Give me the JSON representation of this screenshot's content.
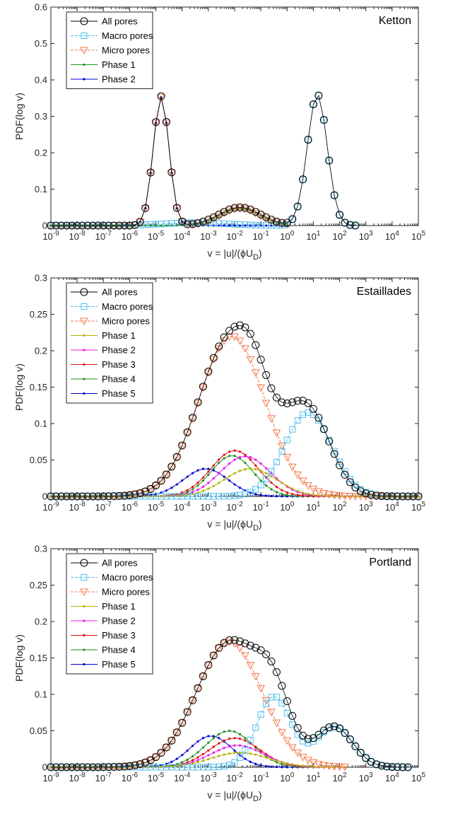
{
  "chart_data": [
    {
      "type": "line",
      "title": "Ketton",
      "xlabel": "v = |u|/(ϕU_D)",
      "ylabel": "PDF(log v)",
      "xscale": "log",
      "xlim": [
        1e-09,
        100000.0
      ],
      "ylim": [
        0,
        0.6
      ],
      "yticks": [
        "0",
        "0.1",
        "0.2",
        "0.3",
        "0.4",
        "0.5",
        "0.6"
      ],
      "xticks": [
        "10^-9",
        "10^-8",
        "10^-7",
        "10^-6",
        "10^-5",
        "10^-4",
        "10^-3",
        "10^-2",
        "10^-1",
        "10^0",
        "10^1",
        "10^2",
        "10^3",
        "10^4",
        "10^5"
      ],
      "legend_position": "top-left",
      "series": [
        {
          "name": "All pores",
          "color": "#000000",
          "marker": "circle",
          "dashed": false,
          "peaks": [
            {
              "c": -4.8,
              "h": 0.355,
              "s": 0.3
            },
            {
              "c": -1.8,
              "h": 0.05,
              "s": 0.8
            },
            {
              "c": 1.15,
              "h": 0.36,
              "s": 0.38
            }
          ],
          "range": [
            -9,
            2.7
          ]
        },
        {
          "name": "Macro pores",
          "color": "#4dbeee",
          "marker": "square",
          "dashed": true,
          "peaks": [
            {
              "c": 1.15,
              "h": 0.36,
              "s": 0.38
            },
            {
              "c": -3.5,
              "h": 0.008,
              "s": 1.2
            }
          ],
          "range": [
            -9,
            2.7
          ]
        },
        {
          "name": "Micro pores",
          "color": "#f47a4f",
          "marker": "triangle",
          "dashed": true,
          "peaks": [
            {
              "c": -4.8,
              "h": 0.352,
              "s": 0.3
            },
            {
              "c": -1.8,
              "h": 0.047,
              "s": 0.75
            }
          ],
          "range": [
            -9,
            0.1
          ]
        },
        {
          "name": "Phase 1",
          "color": "#1f8f1f",
          "marker": "dot",
          "dashed": false,
          "peaks": [
            {
              "c": -1.8,
              "h": 0.047,
              "s": 0.75
            }
          ],
          "range": [
            -9,
            0.1
          ]
        },
        {
          "name": "Phase 2",
          "color": "#0000cc",
          "marker": "dot",
          "dashed": false,
          "peaks": [
            {
              "c": -4.8,
              "h": 0.352,
              "s": 0.3
            }
          ],
          "range": [
            -9,
            0.1
          ]
        }
      ]
    },
    {
      "type": "line",
      "title": "Estaillades",
      "xlabel": "v = |u|/(ϕU_D)",
      "ylabel": "PDF(log v)",
      "xscale": "log",
      "xlim": [
        1e-09,
        100000.0
      ],
      "ylim": [
        0,
        0.3
      ],
      "yticks": [
        "0",
        "0.05",
        "0.1",
        "0.15",
        "0.2",
        "0.25",
        "0.3"
      ],
      "xticks": [
        "10^-9",
        "10^-8",
        "10^-7",
        "10^-6",
        "10^-5",
        "10^-4",
        "10^-3",
        "10^-2",
        "10^-1",
        "10^0",
        "10^1",
        "10^2",
        "10^3",
        "10^4",
        "10^5"
      ],
      "legend_position": "top-left",
      "series": [
        {
          "name": "All pores",
          "color": "#000000",
          "marker": "circle",
          "dashed": false,
          "peaks": [
            {
              "c": -2.1,
              "h": 0.222,
              "s": 1.25
            },
            {
              "c": 0.8,
              "h": 0.113,
              "s": 0.85
            },
            {
              "c": -1.3,
              "h": 0.03,
              "s": 0.5
            }
          ],
          "range": [
            -9,
            5
          ]
        },
        {
          "name": "Macro pores",
          "color": "#4dbeee",
          "marker": "square",
          "dashed": true,
          "peaks": [
            {
              "c": 0.8,
              "h": 0.115,
              "s": 0.9
            }
          ],
          "range": [
            -9,
            5
          ]
        },
        {
          "name": "Micro pores",
          "color": "#f47a4f",
          "marker": "triangle",
          "dashed": true,
          "peaks": [
            {
              "c": -2.1,
              "h": 0.22,
              "s": 1.25
            }
          ],
          "range": [
            -9,
            5
          ]
        },
        {
          "name": "Phase 1",
          "color": "#b5b000",
          "marker": "dot",
          "dashed": false,
          "peaks": [
            {
              "c": -1.4,
              "h": 0.038,
              "s": 1.0
            }
          ],
          "range": [
            -9,
            5
          ]
        },
        {
          "name": "Phase 2",
          "color": "#e619e6",
          "marker": "dot",
          "dashed": false,
          "peaks": [
            {
              "c": -1.6,
              "h": 0.055,
              "s": 0.95
            }
          ],
          "range": [
            -9,
            5
          ]
        },
        {
          "name": "Phase 3",
          "color": "#dd1111",
          "marker": "dot",
          "dashed": false,
          "peaks": [
            {
              "c": -2.0,
              "h": 0.063,
              "s": 0.9
            }
          ],
          "range": [
            -9,
            5
          ]
        },
        {
          "name": "Phase 4",
          "color": "#1f8f1f",
          "marker": "dot",
          "dashed": false,
          "peaks": [
            {
              "c": -2.1,
              "h": 0.056,
              "s": 0.8
            }
          ],
          "range": [
            -9,
            5
          ]
        },
        {
          "name": "Phase 5",
          "color": "#0000cc",
          "marker": "dot",
          "dashed": false,
          "peaks": [
            {
              "c": -3.1,
              "h": 0.038,
              "s": 0.85
            }
          ],
          "range": [
            -9,
            5
          ]
        }
      ]
    },
    {
      "type": "line",
      "title": "Portland",
      "xlabel": "v = |u|/(ϕU_D)",
      "ylabel": "PDF(log v)",
      "xscale": "log",
      "xlim": [
        1e-09,
        100000.0
      ],
      "ylim": [
        0,
        0.3
      ],
      "yticks": [
        "0",
        "0.05",
        "0.1",
        "0.15",
        "0.2",
        "0.25",
        "0.3"
      ],
      "xticks": [
        "10^-9",
        "10^-8",
        "10^-7",
        "10^-6",
        "10^-5",
        "10^-4",
        "10^-3",
        "10^-2",
        "10^-1",
        "10^0",
        "10^1",
        "10^2",
        "10^3",
        "10^4",
        "10^5"
      ],
      "legend_position": "top-left",
      "series": [
        {
          "name": "All pores",
          "color": "#000000",
          "marker": "circle",
          "dashed": false,
          "peaks": [
            {
              "c": -2.2,
              "h": 0.172,
              "s": 1.25
            },
            {
              "c": -0.5,
              "h": 0.07,
              "s": 0.65
            },
            {
              "c": 1.8,
              "h": 0.055,
              "s": 0.7
            }
          ],
          "range": [
            -9,
            4.6
          ]
        },
        {
          "name": "Macro pores",
          "color": "#4dbeee",
          "marker": "square",
          "dashed": true,
          "peaks": [
            {
              "c": -0.5,
              "h": 0.097,
              "s": 0.65
            },
            {
              "c": 1.8,
              "h": 0.055,
              "s": 0.7
            }
          ],
          "range": [
            -9,
            4.6
          ]
        },
        {
          "name": "Micro pores",
          "color": "#f47a4f",
          "marker": "triangle",
          "dashed": true,
          "peaks": [
            {
              "c": -2.2,
              "h": 0.172,
              "s": 1.25
            }
          ],
          "range": [
            -9,
            2.3
          ]
        },
        {
          "name": "Phase 1",
          "color": "#b5b000",
          "marker": "dot",
          "dashed": false,
          "peaks": [
            {
              "c": -1.8,
              "h": 0.02,
              "s": 1.1
            }
          ],
          "range": [
            -9,
            2.3
          ]
        },
        {
          "name": "Phase 2",
          "color": "#e619e6",
          "marker": "dot",
          "dashed": false,
          "peaks": [
            {
              "c": -1.9,
              "h": 0.03,
              "s": 1.0
            }
          ],
          "range": [
            -9,
            2.3
          ]
        },
        {
          "name": "Phase 3",
          "color": "#dd1111",
          "marker": "dot",
          "dashed": false,
          "peaks": [
            {
              "c": -2.0,
              "h": 0.04,
              "s": 0.95
            }
          ],
          "range": [
            -9,
            2.3
          ]
        },
        {
          "name": "Phase 4",
          "color": "#1f8f1f",
          "marker": "dot",
          "dashed": false,
          "peaks": [
            {
              "c": -2.2,
              "h": 0.05,
              "s": 0.9
            }
          ],
          "range": [
            -9,
            2.3
          ]
        },
        {
          "name": "Phase 5",
          "color": "#0000cc",
          "marker": "dot",
          "dashed": false,
          "peaks": [
            {
              "c": -2.9,
              "h": 0.043,
              "s": 0.8
            }
          ],
          "range": [
            -9,
            2.3
          ]
        }
      ]
    }
  ]
}
